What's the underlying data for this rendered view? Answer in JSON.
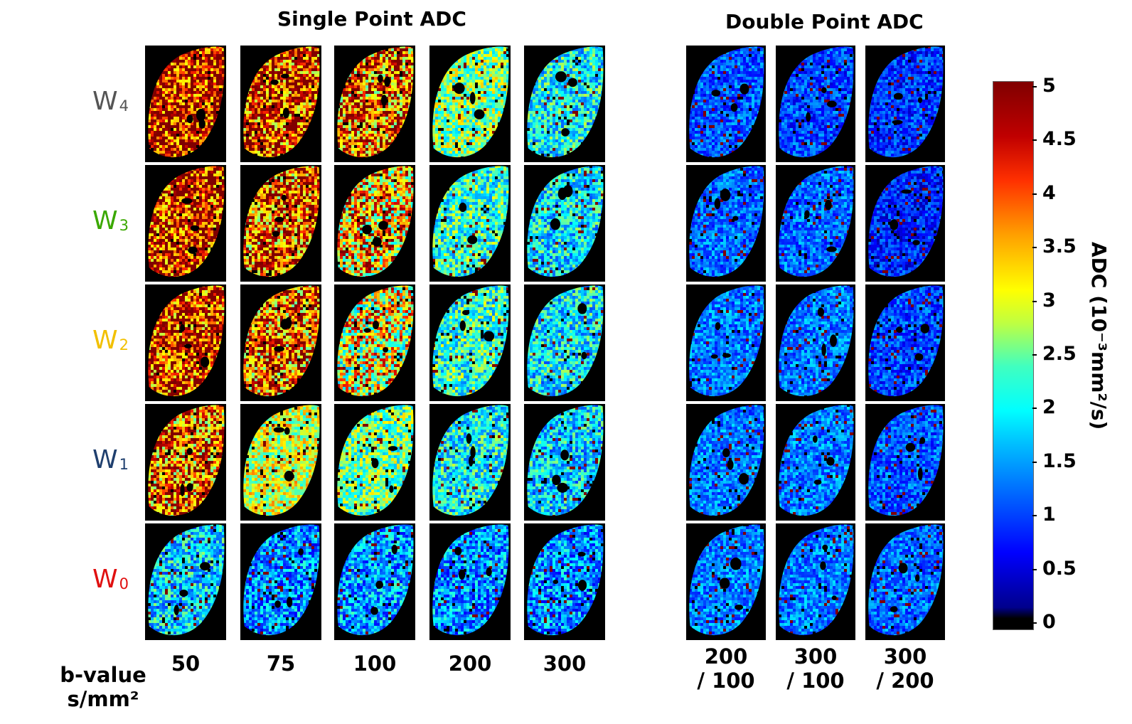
{
  "titles": {
    "single": "Single Point ADC",
    "double": "Double Point ADC"
  },
  "row_labels": [
    {
      "letter": "W",
      "sub": "4",
      "color": "#555555"
    },
    {
      "letter": "W",
      "sub": "3",
      "color": "#3aa800"
    },
    {
      "letter": "W",
      "sub": "2",
      "color": "#f2c000"
    },
    {
      "letter": "W",
      "sub": "1",
      "color": "#1f3f6e"
    },
    {
      "letter": "W",
      "sub": "0",
      "color": "#e01010"
    }
  ],
  "bvalue_label": {
    "line1": "b-value",
    "line2": "s/mm²"
  },
  "single_columns": [
    "50",
    "75",
    "100",
    "200",
    "300"
  ],
  "double_columns": [
    {
      "line1": "200",
      "line2": "/ 100"
    },
    {
      "line1": "300",
      "line2": "/ 100"
    },
    {
      "line1": "300",
      "line2": "/ 200"
    }
  ],
  "colorbar": {
    "title": "ADC (10⁻³mm²/s)",
    "ticks": [
      "0",
      "0.5",
      "1",
      "1.5",
      "2",
      "2.5",
      "3",
      "3.5",
      "4",
      "4.5",
      "5"
    ],
    "range": [
      0,
      5
    ]
  },
  "image_mean_adc": {
    "single": [
      [
        4.6,
        4.3,
        4.0,
        2.6,
        2.0
      ],
      [
        4.5,
        4.1,
        3.5,
        2.2,
        1.9
      ],
      [
        4.4,
        4.0,
        3.2,
        2.2,
        1.9
      ],
      [
        4.0,
        3.0,
        2.5,
        2.0,
        1.8
      ],
      [
        1.8,
        1.4,
        1.5,
        1.4,
        1.4
      ]
    ],
    "double": [
      [
        1.1,
        1.0,
        0.9
      ],
      [
        1.2,
        1.2,
        0.8
      ],
      [
        1.3,
        1.3,
        1.0
      ],
      [
        1.3,
        1.3,
        1.1
      ],
      [
        1.3,
        1.3,
        1.2
      ]
    ]
  }
}
